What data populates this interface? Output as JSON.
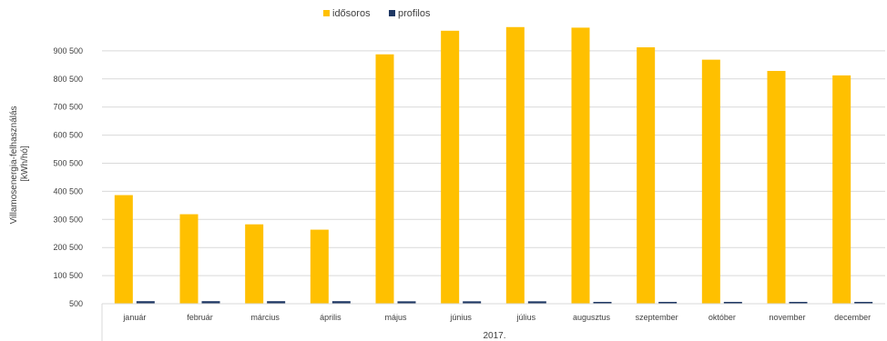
{
  "chart_data": {
    "type": "bar",
    "xlabel": "2017.",
    "ylabel_lines": [
      "Villamosenergia-felhasználás",
      "[kWh/hó]"
    ],
    "categories": [
      "január",
      "február",
      "március",
      "április",
      "május",
      "június",
      "július",
      "augusztus",
      "szeptember",
      "október",
      "november",
      "december"
    ],
    "series": [
      {
        "name": "idősoros",
        "color": "#FFC000",
        "values": [
          387000,
          319000,
          283000,
          264000,
          888000,
          972000,
          985000,
          983000,
          913000,
          869000,
          829000,
          813000
        ]
      },
      {
        "name": "profilos",
        "color": "#1F3864",
        "values": [
          9500,
          9500,
          9500,
          9500,
          9000,
          9000,
          9000,
          7000,
          7000,
          7000,
          7000,
          7000
        ]
      }
    ],
    "ylim": [
      500,
      1000500
    ],
    "yticks": [
      500,
      100500,
      200500,
      300500,
      400500,
      500500,
      600500,
      700500,
      800500,
      900500
    ],
    "ytick_labels": [
      "500",
      "100 500",
      "200 500",
      "300 500",
      "400 500",
      "500 500",
      "600 500",
      "700 500",
      "800 500",
      "900 500"
    ],
    "grid": true,
    "legend": "top-center"
  }
}
